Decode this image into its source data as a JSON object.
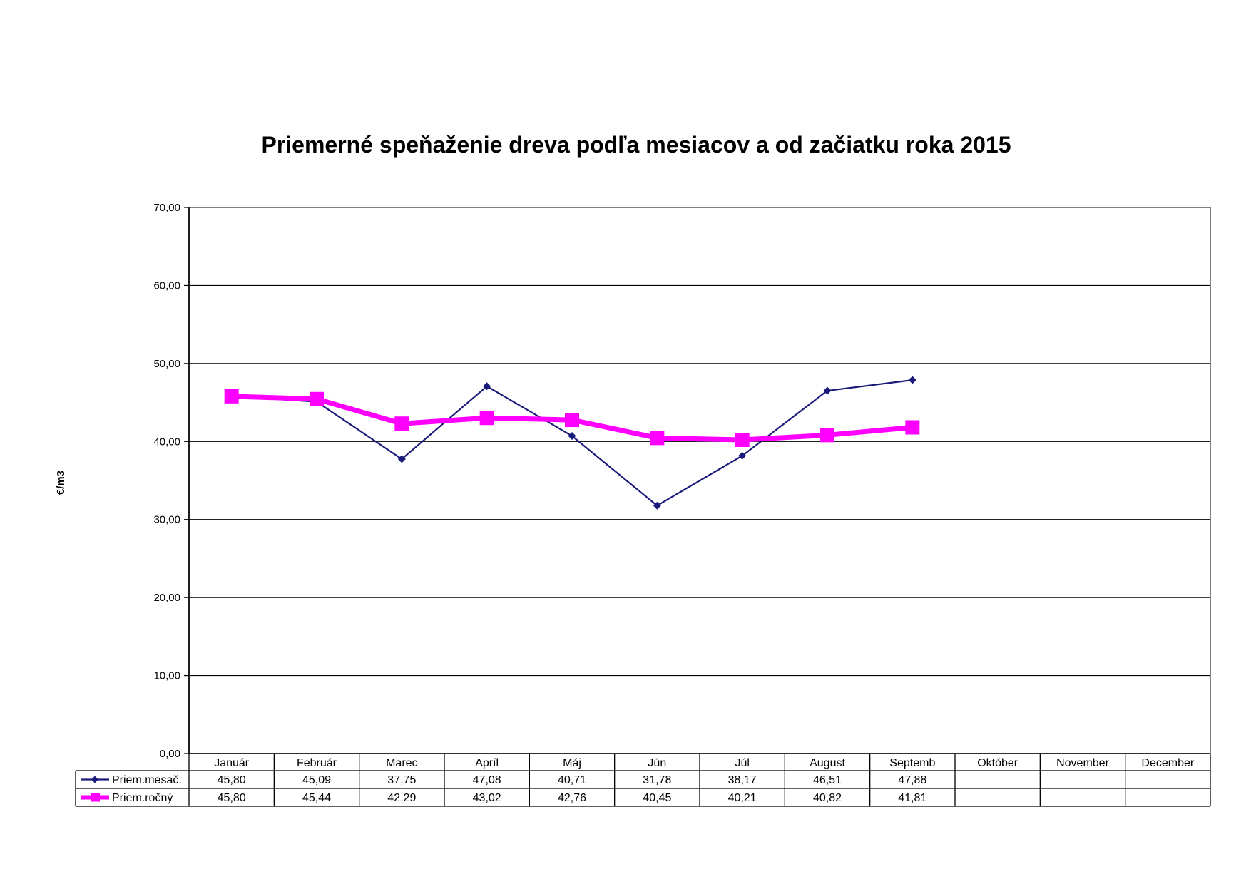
{
  "chart_data": {
    "type": "line",
    "title": "Priemerné speňaženie dreva podľa mesiacov a od začiatku roka 2015",
    "xlabel": "",
    "ylabel": "€/m3",
    "ylim": [
      0,
      70
    ],
    "y_ticks": [
      "0,00",
      "10,00",
      "20,00",
      "30,00",
      "40,00",
      "50,00",
      "60,00",
      "70,00"
    ],
    "grid": true,
    "legend": "data-table",
    "categories": [
      "Január",
      "Február",
      "Marec",
      "Apríl",
      "Máj",
      "Jún",
      "Júl",
      "August",
      "Septemb",
      "Október",
      "November",
      "December"
    ],
    "series": [
      {
        "name": "Priem.mesač.",
        "color": "#1a1a7a",
        "marker": "diamond",
        "values": [
          45.8,
          45.09,
          37.75,
          47.08,
          40.71,
          31.78,
          38.17,
          46.51,
          47.88,
          null,
          null,
          null
        ],
        "labels": [
          "45,80",
          "45,09",
          "37,75",
          "47,08",
          "40,71",
          "31,78",
          "38,17",
          "46,51",
          "47,88",
          "",
          "",
          ""
        ]
      },
      {
        "name": "Priem.ročný",
        "color": "#ff00ff",
        "marker": "square",
        "values": [
          45.8,
          45.44,
          42.29,
          43.02,
          42.76,
          40.45,
          40.21,
          40.82,
          41.81,
          null,
          null,
          null
        ],
        "labels": [
          "45,80",
          "45,44",
          "42,29",
          "43,02",
          "42,76",
          "40,45",
          "40,21",
          "40,82",
          "41,81",
          "",
          "",
          ""
        ]
      }
    ]
  }
}
